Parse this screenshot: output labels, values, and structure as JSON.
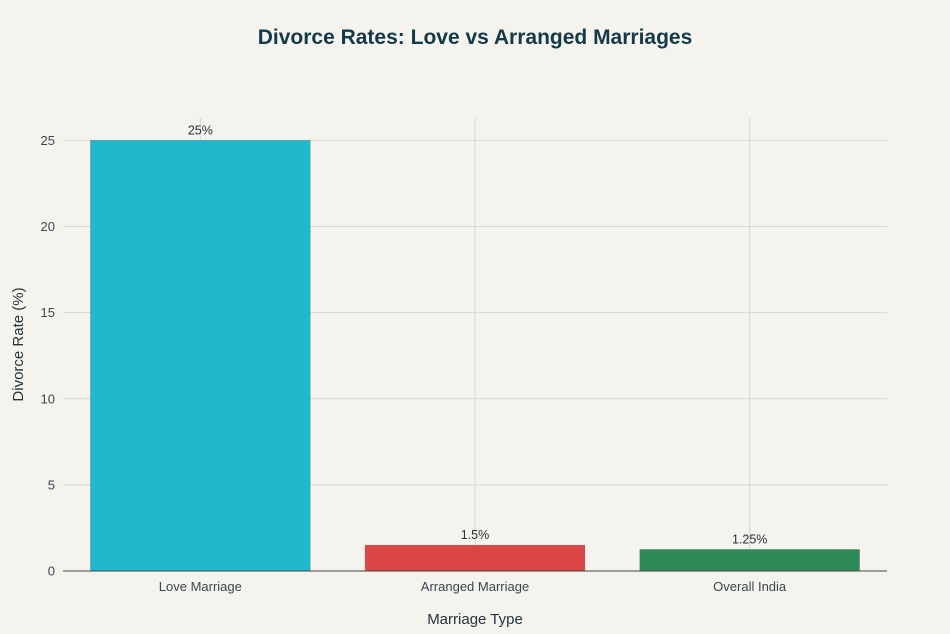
{
  "chart_data": {
    "type": "bar",
    "title": "Divorce Rates: Love vs Arranged Marriages",
    "xlabel": "Marriage Type",
    "ylabel": "Divorce Rate (%)",
    "categories": [
      "Love Marriage",
      "Arranged Marriage",
      "Overall India"
    ],
    "values": [
      25,
      1.5,
      1.25
    ],
    "data_labels": [
      "25%",
      "1.5%",
      "1.25%"
    ],
    "colors": [
      "#1fb8cd",
      "#db4545",
      "#2e8b57"
    ],
    "yticks": [
      0,
      5,
      10,
      15,
      20,
      25
    ],
    "ylim": [
      0,
      26.3
    ],
    "grid": true
  }
}
